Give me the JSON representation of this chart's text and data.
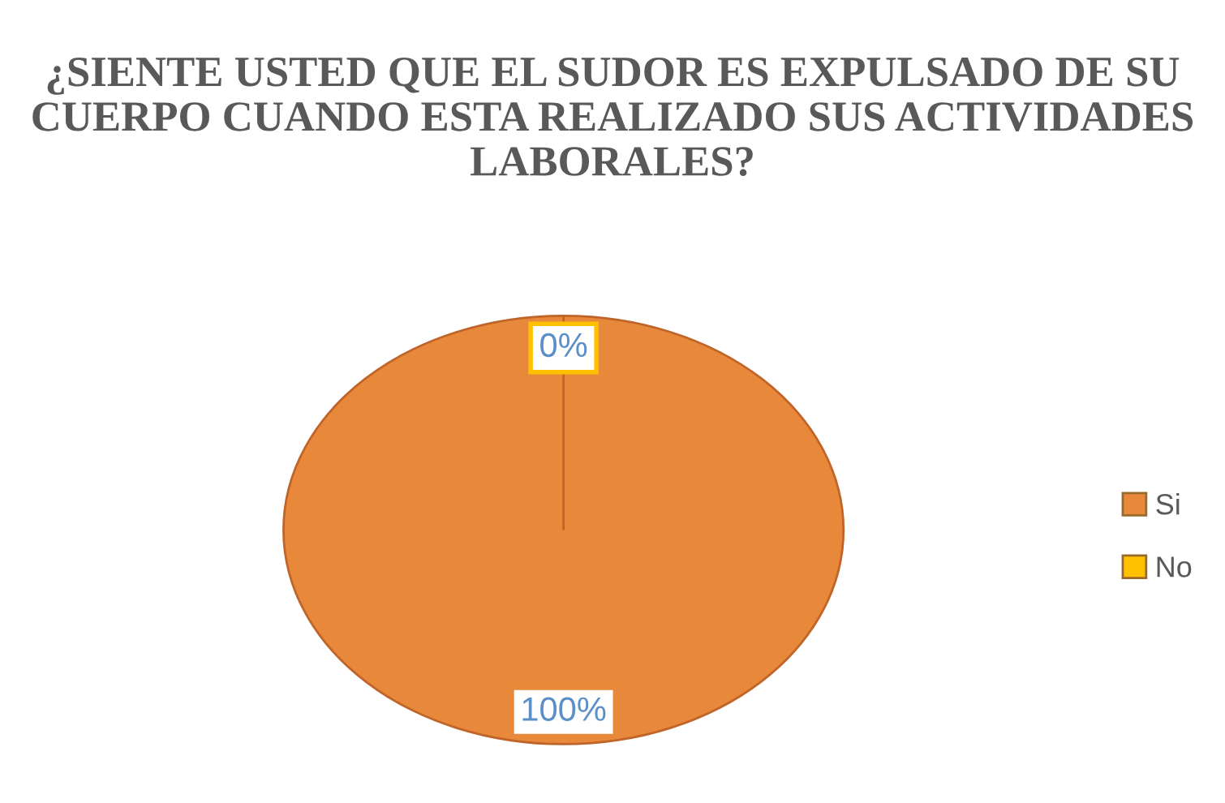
{
  "chart_data": {
    "type": "pie",
    "title": "¿SIENTE USTED QUE EL SUDOR ES EXPULSADO DE SU CUERPO CUANDO ESTA REALIZADO SUS ACTIVIDADES LABORALES?",
    "categories": [
      "Si",
      "No"
    ],
    "values": [
      100,
      0
    ],
    "colors": [
      "#e8883a",
      "#ffc000"
    ],
    "value_labels": [
      "100%",
      "0%"
    ],
    "legend": "right"
  }
}
